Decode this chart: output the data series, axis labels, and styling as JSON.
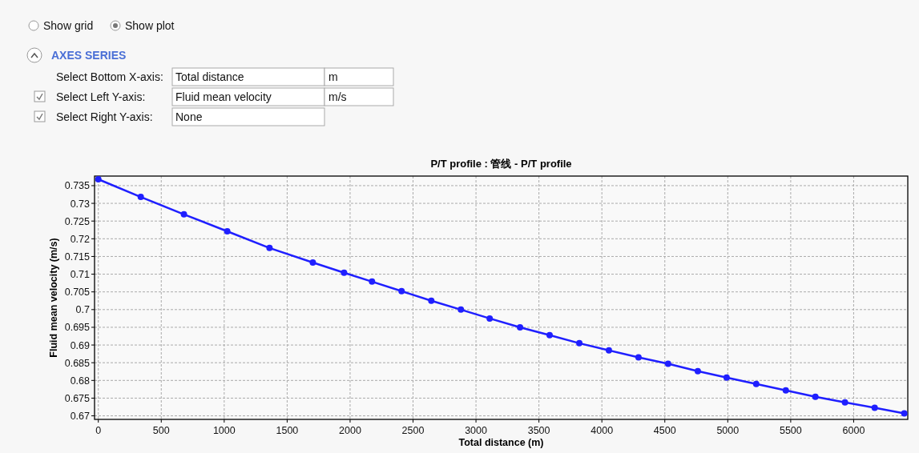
{
  "chart_data": {
    "type": "line",
    "title": "P/T profile : 管线 - P/T profile",
    "xlabel": "Total distance (m)",
    "ylabel": "Fluid mean velocity (m/s)",
    "annotations": [
      "Show grid",
      "Show plot",
      "AXES SERIES",
      "Select Bottom X-axis:",
      "Total distance",
      "m",
      "Select Left Y-axis:",
      "Fluid mean velocity",
      "m/s",
      "Select Right Y-axis:",
      "None"
    ],
    "x": [
      0,
      337,
      680,
      1024,
      1360,
      1704,
      1952,
      2174,
      2409,
      2645,
      2880,
      3109,
      3350,
      3585,
      3821,
      4056,
      4291,
      4526,
      4762,
      4991,
      5226,
      5461,
      5696,
      5931,
      6167,
      6402
    ],
    "series": [
      {
        "color": "#1f1fff",
        "values": [
          0.7368,
          0.7318,
          0.7269,
          0.7221,
          0.7174,
          0.7133,
          0.7104,
          0.7079,
          0.7052,
          0.7025,
          0.7,
          0.6975,
          0.695,
          0.6928,
          0.6905,
          0.6885,
          0.6865,
          0.6847,
          0.6826,
          0.6808,
          0.679,
          0.6772,
          0.6754,
          0.6738,
          0.6723,
          0.6707
        ]
      }
    ],
    "xlim": [
      -30,
      6430
    ],
    "ylim": [
      0.669,
      0.7377
    ],
    "xticks": [
      0,
      500,
      1000,
      1500,
      2000,
      2500,
      3000,
      3500,
      4000,
      4500,
      5000,
      5500,
      6000
    ],
    "yticks": [
      0.67,
      0.675,
      0.68,
      0.685,
      0.69,
      0.695,
      0.7,
      0.705,
      0.71,
      0.715,
      0.72,
      0.725,
      0.73,
      0.735
    ],
    "grid": true,
    "marker": "circle",
    "line_style": "solid"
  }
}
